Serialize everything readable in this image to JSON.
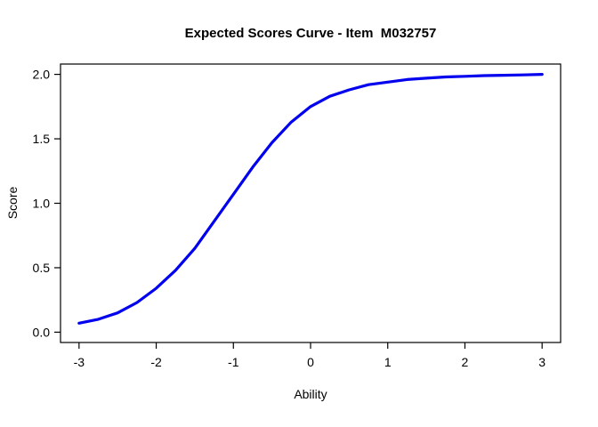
{
  "title": "Expected Scores Curve - Item  M032757",
  "chart_data": {
    "type": "line",
    "title": "Expected Scores Curve - Item  M032757",
    "xlabel": "Ability",
    "ylabel": "Score",
    "xlim": [
      -3,
      3
    ],
    "ylim": [
      0,
      2
    ],
    "grid": false,
    "legend": "none",
    "x_ticks": [
      -3,
      -2,
      -1,
      0,
      1,
      2,
      3
    ],
    "x_tick_labels": [
      "-3",
      "-2",
      "-1",
      "0",
      "1",
      "2",
      "3"
    ],
    "y_ticks": [
      0.0,
      0.5,
      1.0,
      1.5,
      2.0
    ],
    "y_tick_labels": [
      "0.0",
      "0.5",
      "1.0",
      "1.5",
      "2.0"
    ],
    "series": [
      {
        "name": "expected-score-curve",
        "color": "#0000EE",
        "x": [
          -3,
          -2.75,
          -2.5,
          -2.25,
          -2,
          -1.75,
          -1.5,
          -1.25,
          -1,
          -0.75,
          -0.5,
          -0.25,
          0,
          0.25,
          0.5,
          0.75,
          1,
          1.25,
          1.5,
          1.75,
          2,
          2.25,
          2.5,
          2.75,
          3
        ],
        "y": [
          0.07,
          0.1,
          0.15,
          0.23,
          0.34,
          0.48,
          0.65,
          0.86,
          1.07,
          1.28,
          1.47,
          1.63,
          1.75,
          1.83,
          1.88,
          1.92,
          1.94,
          1.96,
          1.97,
          1.98,
          1.985,
          1.99,
          1.993,
          1.996,
          2.0
        ]
      }
    ]
  }
}
